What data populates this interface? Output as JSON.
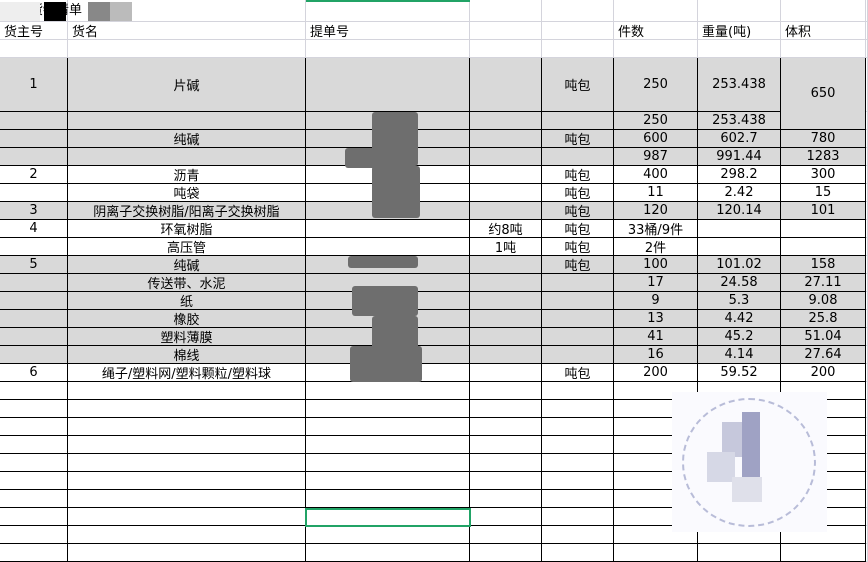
{
  "sheet": {
    "title": "山轮货物清单",
    "headers": [
      "货主号",
      "货名",
      "提单号",
      "",
      "",
      "件数",
      "重量(吨)",
      "体积"
    ],
    "rows": [
      {
        "owner": "1",
        "name": "片碱",
        "note": "",
        "pkg": "吨包",
        "qty": "250",
        "weight": "253.438",
        "volume": "650",
        "shaded": true
      },
      {
        "owner": "",
        "name": "",
        "note": "",
        "pkg": "",
        "qty": "250",
        "weight": "253.438",
        "volume": "",
        "shaded": true
      },
      {
        "owner": "",
        "name": "纯碱",
        "note": "",
        "pkg": "吨包",
        "qty": "600",
        "weight": "602.7",
        "volume": "780",
        "shaded": true
      },
      {
        "owner": "",
        "name": "",
        "note": "",
        "pkg": "",
        "qty": "987",
        "weight": "991.44",
        "volume": "1283",
        "shaded": true
      },
      {
        "owner": "2",
        "name": "沥青",
        "note": "",
        "pkg": "吨包",
        "qty": "400",
        "weight": "298.2",
        "volume": "300",
        "shaded": false
      },
      {
        "owner": "",
        "name": "吨袋",
        "note": "",
        "pkg": "吨包",
        "qty": "11",
        "weight": "2.42",
        "volume": "15",
        "shaded": false
      },
      {
        "owner": "3",
        "name": "阴离子交换树脂/阳离子交换树脂",
        "note": "",
        "pkg": "吨包",
        "qty": "120",
        "weight": "120.14",
        "volume": "101",
        "shaded": true
      },
      {
        "owner": "4",
        "name": "环氧树脂",
        "note": "约8吨",
        "pkg": "吨包",
        "qty": "33桶/9件",
        "weight": "",
        "volume": "",
        "shaded": false
      },
      {
        "owner": "",
        "name": "高压管",
        "note": "1吨",
        "pkg": "吨包",
        "qty": "2件",
        "weight": "",
        "volume": "",
        "shaded": false
      },
      {
        "owner": "5",
        "name": "纯碱",
        "note": "",
        "pkg": "吨包",
        "qty": "100",
        "weight": "101.02",
        "volume": "158",
        "shaded": true
      },
      {
        "owner": "",
        "name": "传送带、水泥",
        "note": "",
        "pkg": "",
        "qty": "17",
        "weight": "24.58",
        "volume": "27.11",
        "shaded": true
      },
      {
        "owner": "",
        "name": "纸",
        "note": "",
        "pkg": "",
        "qty": "9",
        "weight": "5.3",
        "volume": "9.08",
        "shaded": true
      },
      {
        "owner": "",
        "name": "橡胶",
        "note": "",
        "pkg": "",
        "qty": "13",
        "weight": "4.42",
        "volume": "25.8",
        "shaded": true
      },
      {
        "owner": "",
        "name": "塑料薄膜",
        "note": "",
        "pkg": "",
        "qty": "41",
        "weight": "45.2",
        "volume": "51.04",
        "shaded": true
      },
      {
        "owner": "",
        "name": "棉线",
        "note": "",
        "pkg": "",
        "qty": "16",
        "weight": "4.14",
        "volume": "27.64",
        "shaded": true
      },
      {
        "owner": "6",
        "name": "绳子/塑料网/塑料颗粒/塑料球",
        "note": "",
        "pkg": "吨包",
        "qty": "200",
        "weight": "59.52",
        "volume": "200",
        "shaded": false
      }
    ]
  },
  "colors": {
    "shade": "#d9d9d9",
    "selection": "#21a366",
    "grid": "#d4d4dc"
  }
}
